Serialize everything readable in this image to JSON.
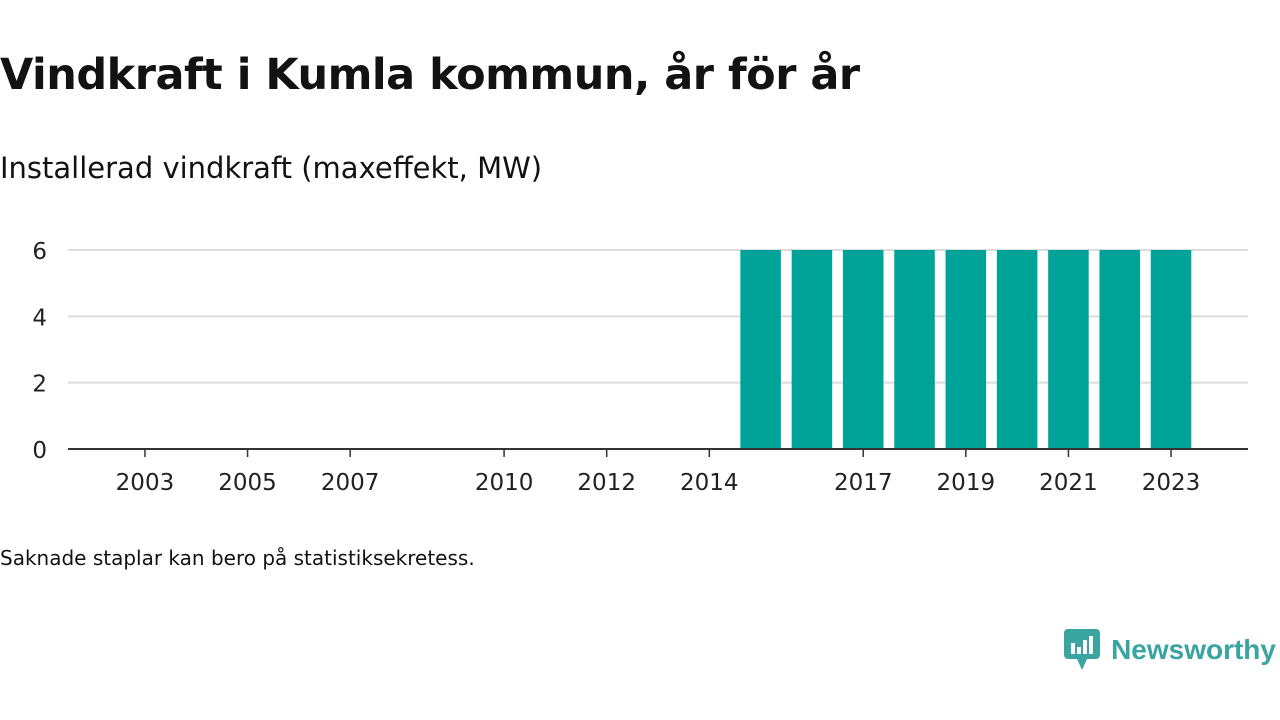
{
  "header": {
    "title": "Vindkraft i Kumla kommun, år för år",
    "subtitle": "Installerad vindkraft (maxeffekt, MW)"
  },
  "footnote": "Saknade staplar kan bero på statistiksekretess.",
  "brand": {
    "name": "Newsworthy",
    "icon": "newsworthy-logo-icon",
    "color": "#3aa5a0"
  },
  "colors": {
    "bar": "#00a397",
    "grid": "#dcdcdc",
    "axis": "#333333",
    "text": "#222222"
  },
  "chart_data": {
    "type": "bar",
    "title": "Vindkraft i Kumla kommun, år för år",
    "ylabel": "Installerad vindkraft (maxeffekt, MW)",
    "xlabel": "",
    "categories": [
      "2002",
      "2003",
      "2004",
      "2005",
      "2006",
      "2007",
      "2008",
      "2009",
      "2010",
      "2011",
      "2012",
      "2013",
      "2014",
      "2015",
      "2016",
      "2017",
      "2018",
      "2019",
      "2020",
      "2021",
      "2022",
      "2023",
      "2024"
    ],
    "values": [
      0,
      0,
      0,
      0,
      0,
      0,
      0,
      0,
      0,
      0,
      0,
      0,
      0,
      6,
      6,
      6,
      6,
      6,
      6,
      6,
      6,
      6,
      null
    ],
    "x_tick_labels": [
      "2003",
      "2005",
      "2007",
      "2010",
      "2012",
      "2014",
      "2017",
      "2019",
      "2021",
      "2023"
    ],
    "y_ticks": [
      "0",
      "2",
      "4",
      "6"
    ],
    "ylim": [
      0,
      6
    ],
    "grid": true,
    "legend": "none"
  }
}
